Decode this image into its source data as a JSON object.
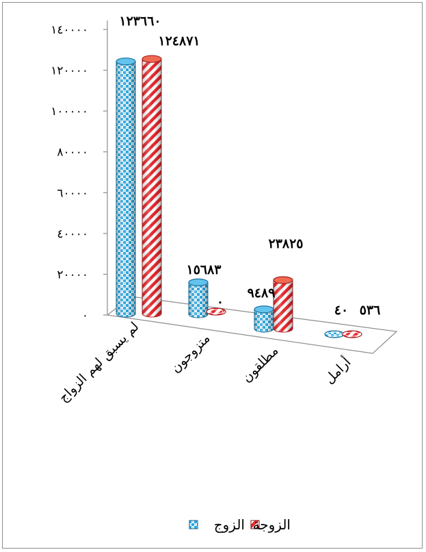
{
  "chart_data": {
    "type": "bar",
    "categories": [
      "لم يسبق لهم الزواج",
      "متزوجون",
      "مطلقون",
      "أرامل"
    ],
    "series": [
      {
        "name": "الزوج",
        "values": [
          123660,
          15683,
          9489,
          40
        ],
        "labels": [
          "١٢٣٦٦٠",
          "١٥٦٨٣",
          "٩٤٨٩",
          "٤٠"
        ],
        "color": "#29a8e0",
        "pattern": "checker"
      },
      {
        "name": "الزوجة",
        "values": [
          124871,
          0,
          23825,
          536
        ],
        "labels": [
          "١٢٤٨٧١",
          "٠",
          "٢٣٨٢٥",
          "٥٣٦"
        ],
        "color": "#e8282e",
        "pattern": "diagonal-stripes"
      }
    ],
    "ylim": [
      0,
      140000
    ],
    "yticks": [
      0,
      20000,
      40000,
      60000,
      80000,
      100000,
      120000,
      140000
    ],
    "ytick_labels": [
      "٠",
      "٢٠٠٠٠",
      "٤٠٠٠٠",
      "٦٠٠٠٠",
      "٨٠٠٠٠",
      "١٠٠٠٠٠",
      "١٢٠٠٠٠",
      "١٤٠٠٠٠"
    ],
    "title": "",
    "xlabel": "",
    "ylabel": "",
    "legend_position": "bottom",
    "grid": false,
    "style": "3d-cylinder"
  }
}
